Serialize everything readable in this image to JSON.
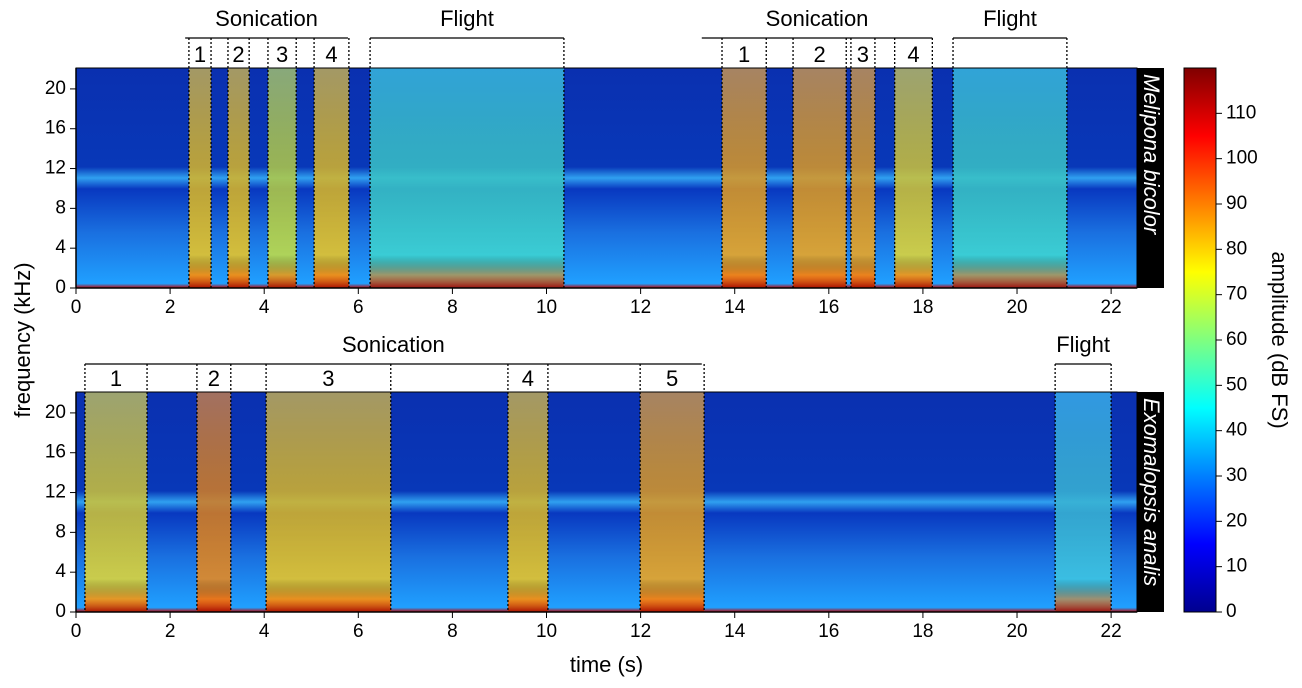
{
  "chart_data": [
    {
      "type": "spectrogram",
      "title": "Melipona bicolor",
      "ylabel": "frequency (kHz)",
      "xlim": [
        0,
        22.55
      ],
      "xticks": [
        0,
        2,
        4,
        6,
        8,
        10,
        12,
        14,
        16,
        18,
        20,
        22
      ],
      "ylim": [
        0,
        22.1
      ],
      "yticks": [
        0,
        4,
        8,
        12,
        16,
        20
      ],
      "brackets": [
        {
          "label": "Sonication",
          "start": 2.32,
          "end": 5.78
        },
        {
          "label": "Flight",
          "start": 6.25,
          "end": 10.37
        },
        {
          "label": "Sonication",
          "start": 13.3,
          "end": 18.2
        },
        {
          "label": "Flight",
          "start": 18.64,
          "end": 21.06
        }
      ],
      "events": [
        {
          "label": "1",
          "start": 2.4,
          "end": 2.87,
          "color": "#f2c81e"
        },
        {
          "label": "2",
          "start": 3.23,
          "end": 3.68,
          "color": "#f2c81e"
        },
        {
          "label": "3",
          "start": 4.08,
          "end": 4.68,
          "color": "#c8e040"
        },
        {
          "label": "4",
          "start": 5.06,
          "end": 5.8,
          "color": "#f2c81e"
        },
        {
          "label": null,
          "start": 6.25,
          "end": 10.37,
          "color": "#40d8d0"
        },
        {
          "label": "1",
          "start": 13.73,
          "end": 14.67,
          "color": "#f7a81a"
        },
        {
          "label": "2",
          "start": 15.24,
          "end": 16.37,
          "color": "#f7a81a"
        },
        {
          "label": "3",
          "start": 16.47,
          "end": 16.98,
          "color": "#f7a81a"
        },
        {
          "label": "4",
          "start": 17.4,
          "end": 18.2,
          "color": "#e8d830"
        },
        {
          "label": null,
          "start": 18.64,
          "end": 21.06,
          "color": "#40d8d0"
        }
      ]
    },
    {
      "type": "spectrogram",
      "title": "Exomalopsis analis",
      "xlabel": "time (s)",
      "xlim": [
        0,
        22.55
      ],
      "xticks": [
        0,
        2,
        4,
        6,
        8,
        10,
        12,
        14,
        16,
        18,
        20,
        22
      ],
      "ylim": [
        0,
        22.1
      ],
      "yticks": [
        0,
        4,
        8,
        12,
        16,
        20
      ],
      "brackets": [
        {
          "label": "Sonication",
          "start": 0.19,
          "end": 13.3
        },
        {
          "label": "Flight",
          "start": 20.81,
          "end": 22.0
        }
      ],
      "events": [
        {
          "label": "1",
          "start": 0.19,
          "end": 1.51,
          "color": "#e8d830"
        },
        {
          "label": "2",
          "start": 2.57,
          "end": 3.29,
          "color": "#f08a18"
        },
        {
          "label": "3",
          "start": 4.04,
          "end": 6.69,
          "color": "#f2c81e"
        },
        {
          "label": "4",
          "start": 9.18,
          "end": 10.03,
          "color": "#f2c81e"
        },
        {
          "label": "5",
          "start": 11.99,
          "end": 13.35,
          "color": "#f7a81a"
        },
        {
          "label": null,
          "start": 20.81,
          "end": 22.0,
          "color": "#40c8e0"
        }
      ]
    },
    {
      "type": "colorbar",
      "label": "amplitude (dB FS)",
      "lim": [
        0,
        120
      ],
      "ticks": [
        0,
        10,
        20,
        30,
        40,
        50,
        60,
        70,
        80,
        90,
        100,
        110
      ]
    }
  ]
}
